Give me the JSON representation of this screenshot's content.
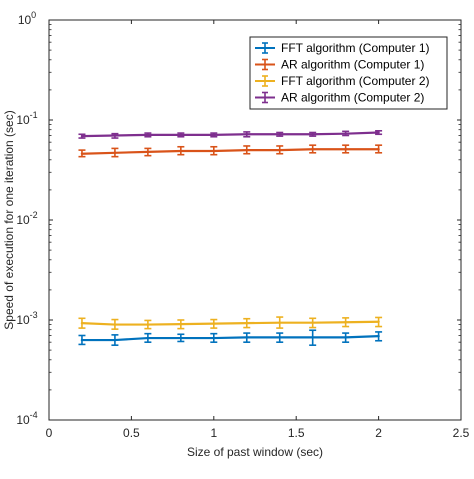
{
  "chart_data": {
    "type": "line",
    "title": "",
    "xlabel": "Size of past window (sec)",
    "ylabel": "Speed of execution for one iteration (sec)",
    "xlim": [
      0,
      2.5
    ],
    "ylim": [
      0.0001,
      1
    ],
    "yscale": "log",
    "grid": false,
    "legend_position": "top-right",
    "xticks": [
      {
        "value": 0,
        "label": "0"
      },
      {
        "value": 0.5,
        "label": "0.5"
      },
      {
        "value": 1,
        "label": "1"
      },
      {
        "value": 1.5,
        "label": "1.5"
      },
      {
        "value": 2,
        "label": "2"
      },
      {
        "value": 2.5,
        "label": "2.5"
      }
    ],
    "yticks": [
      {
        "value": 0.0001,
        "base": "10",
        "exp": "-4"
      },
      {
        "value": 0.001,
        "base": "10",
        "exp": "-3"
      },
      {
        "value": 0.01,
        "base": "10",
        "exp": "-2"
      },
      {
        "value": 0.1,
        "base": "10",
        "exp": "-1"
      },
      {
        "value": 1,
        "base": "10",
        "exp": "0"
      }
    ],
    "x": [
      0.2,
      0.4,
      0.6,
      0.8,
      1.0,
      1.2,
      1.4,
      1.6,
      1.8,
      2.0
    ],
    "series": [
      {
        "name": "FFT algorithm (Computer 1)",
        "color": "#0072BD",
        "values": [
          0.00063,
          0.00063,
          0.00066,
          0.00066,
          0.00066,
          0.00067,
          0.00067,
          0.00067,
          0.00067,
          0.00069
        ],
        "lower": [
          0.00057,
          0.00056,
          0.0006,
          0.00061,
          0.0006,
          0.0006,
          0.0006,
          0.00056,
          0.0006,
          0.00062
        ],
        "upper": [
          0.0007,
          0.00071,
          0.00073,
          0.00072,
          0.00073,
          0.00074,
          0.00074,
          0.00079,
          0.00074,
          0.00076
        ]
      },
      {
        "name": "AR algorithm (Computer 1)",
        "color": "#D95319",
        "values": [
          0.046,
          0.047,
          0.048,
          0.049,
          0.049,
          0.05,
          0.05,
          0.051,
          0.051,
          0.051
        ],
        "lower": [
          0.043,
          0.043,
          0.044,
          0.045,
          0.045,
          0.046,
          0.046,
          0.047,
          0.047,
          0.047
        ],
        "upper": [
          0.05,
          0.052,
          0.052,
          0.054,
          0.054,
          0.055,
          0.055,
          0.056,
          0.056,
          0.056
        ]
      },
      {
        "name": "FFT algorithm (Computer 2)",
        "color": "#EDB120",
        "values": [
          0.00093,
          0.0009,
          0.0009,
          0.00091,
          0.00092,
          0.00093,
          0.00094,
          0.00094,
          0.00095,
          0.00096
        ],
        "lower": [
          0.00083,
          0.00081,
          0.00082,
          0.00082,
          0.00083,
          0.00084,
          0.00083,
          0.00084,
          0.00086,
          0.00086
        ],
        "upper": [
          0.00104,
          0.00101,
          0.00099,
          0.001,
          0.00101,
          0.00103,
          0.00107,
          0.00104,
          0.00105,
          0.00106
        ]
      },
      {
        "name": "AR algorithm (Computer 2)",
        "color": "#7E2F8E",
        "values": [
          0.069,
          0.07,
          0.071,
          0.071,
          0.071,
          0.072,
          0.072,
          0.072,
          0.073,
          0.075
        ],
        "lower": [
          0.066,
          0.066,
          0.068,
          0.068,
          0.068,
          0.068,
          0.069,
          0.069,
          0.07,
          0.072
        ],
        "upper": [
          0.072,
          0.073,
          0.074,
          0.074,
          0.074,
          0.076,
          0.075,
          0.075,
          0.077,
          0.078
        ]
      }
    ]
  }
}
